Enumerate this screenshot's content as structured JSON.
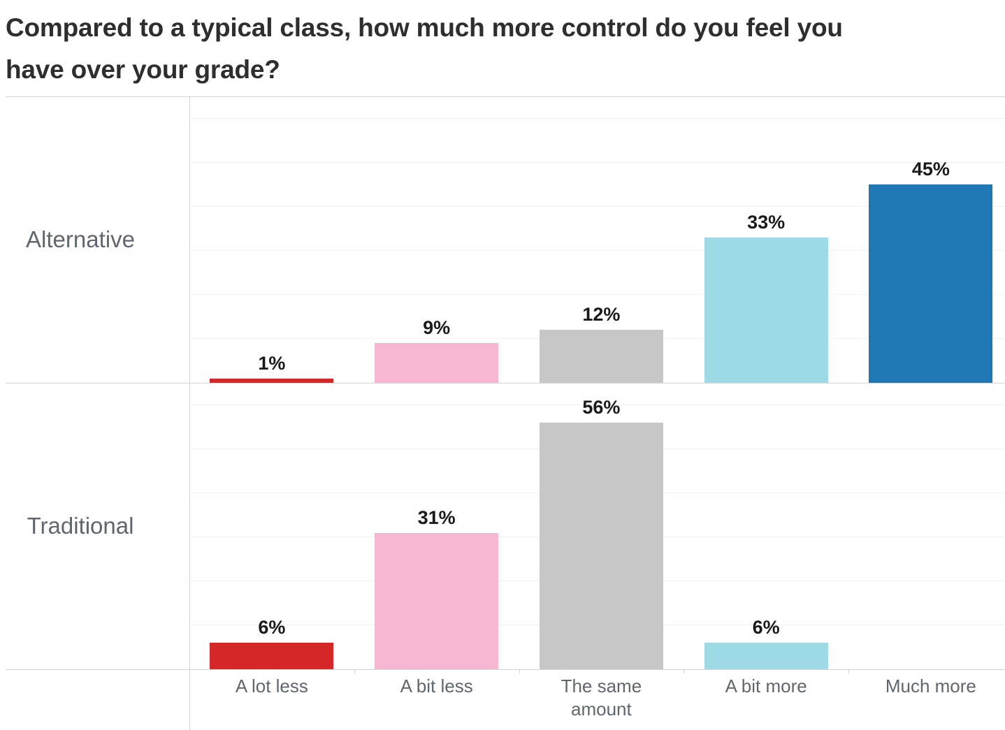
{
  "title": {
    "line1": "Compared to a typical class, how much more control do you feel you",
    "line2": "have over your grade?"
  },
  "chart_data": {
    "type": "bar",
    "title": "Compared to a typical class, how much more control do you feel you have over your grade?",
    "orientation": "column",
    "panels": [
      "Alternative",
      "Traditional"
    ],
    "categories": [
      "A lot less",
      "A bit less",
      "The same amount",
      "A bit more",
      "Much more"
    ],
    "category_labels_display": [
      "A lot less",
      "A bit less",
      "The same\namount",
      "A bit more",
      "Much more"
    ],
    "series": [
      {
        "name": "Alternative",
        "values": [
          1,
          9,
          12,
          33,
          45
        ],
        "labels": [
          "1%",
          "9%",
          "12%",
          "33%",
          "45%"
        ]
      },
      {
        "name": "Traditional",
        "values": [
          6,
          31,
          56,
          6,
          0
        ],
        "labels": [
          "6%",
          "31%",
          "56%",
          "6%",
          ""
        ]
      }
    ],
    "colors": [
      "#d62728",
      "#f7b6d2",
      "#c7c7c7",
      "#9edae5",
      "#1f77b4"
    ],
    "value_unit": "%",
    "ylim": [
      0,
      65
    ],
    "gridline_step": 10,
    "grid": "on",
    "legend": "none",
    "style_colors": {
      "title_text": "#2e2e2e",
      "value_label_text": "#1a1a1a",
      "header_text": "#5e6770",
      "axis_line": "#d4d4d4",
      "gridline": "#f0f0f0",
      "background": "#ffffff"
    }
  }
}
